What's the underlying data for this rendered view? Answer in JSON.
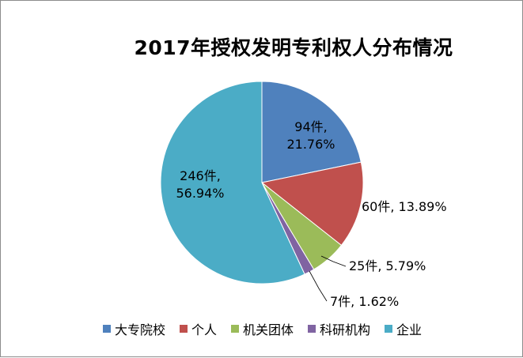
{
  "chart_data": {
    "type": "pie",
    "title": "2017年授权发明专利权人分布情况",
    "categories": [
      "大专院校",
      "个人",
      "机关团体",
      "科研机构",
      "企业"
    ],
    "values": [
      94,
      60,
      25,
      7,
      246
    ],
    "percentages": [
      "21.76%",
      "13.89%",
      "5.79%",
      "1.62%",
      "56.94%"
    ],
    "labels": [
      [
        "94件,",
        "21.76%"
      ],
      [
        "60件, 13.89%"
      ],
      [
        "25件, 5.79%"
      ],
      [
        "7件, 1.62%"
      ],
      [
        "246件,",
        "56.94%"
      ]
    ],
    "colors": [
      "#4f81bd",
      "#c0504d",
      "#9bbb59",
      "#8064a2",
      "#4bacc6"
    ],
    "legend": {
      "position": "bottom"
    }
  }
}
